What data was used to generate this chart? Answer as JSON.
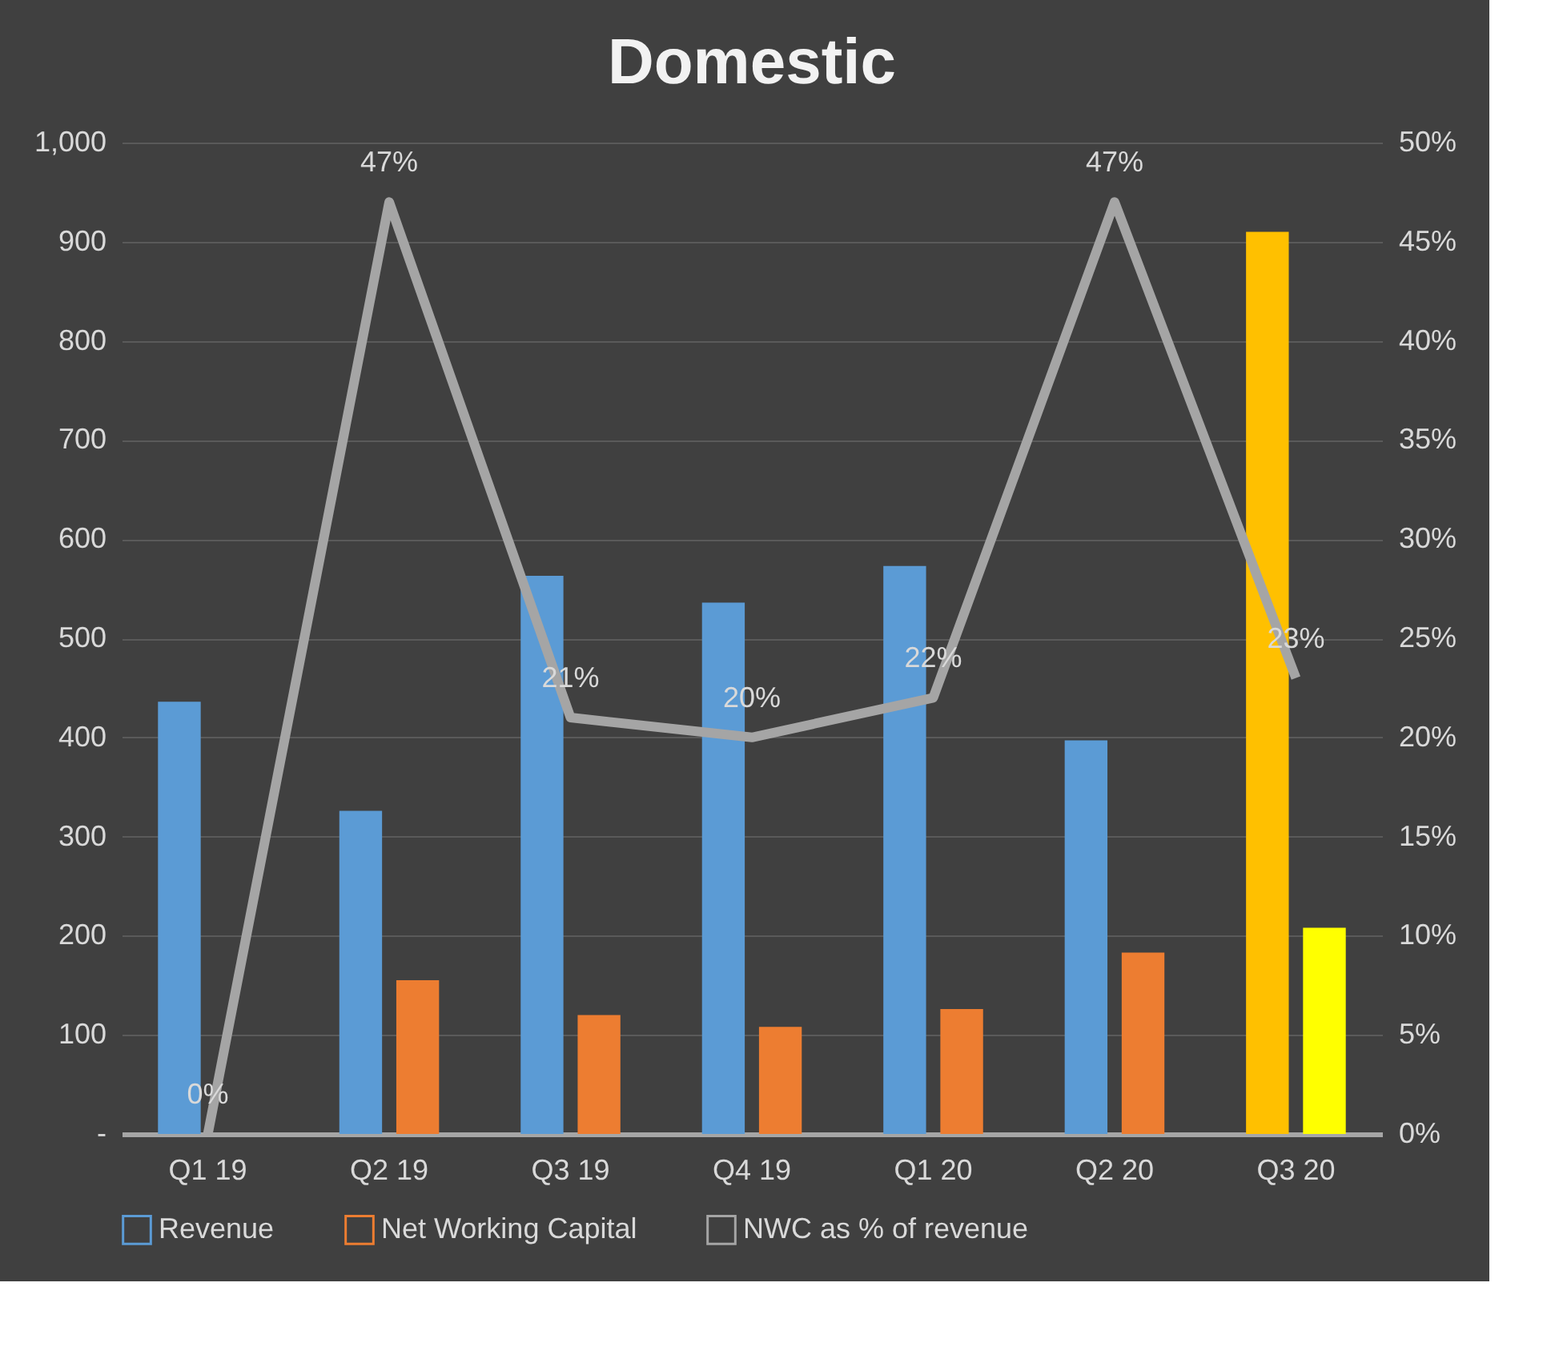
{
  "chart_data": {
    "type": "bar",
    "title": "Domestic",
    "categories": [
      "Q1 19",
      "Q2 19",
      "Q3 19",
      "Q4 19",
      "Q1 20",
      "Q2 20",
      "Q3 20"
    ],
    "series": [
      {
        "name": "Revenue",
        "color": "#5b9bd5",
        "colors": [
          "#5b9bd5",
          "#5b9bd5",
          "#5b9bd5",
          "#5b9bd5",
          "#5b9bd5",
          "#5b9bd5",
          "#ffc000"
        ],
        "values": [
          436,
          326,
          563,
          536,
          573,
          397,
          910
        ]
      },
      {
        "name": "Net Working Capital",
        "color": "#ed7d31",
        "colors": [
          "#ed7d31",
          "#ed7d31",
          "#ed7d31",
          "#ed7d31",
          "#ed7d31",
          "#ed7d31",
          "#ffff00"
        ],
        "values": [
          0,
          155,
          120,
          108,
          126,
          183,
          208
        ]
      },
      {
        "name": "NWC as % of revenue",
        "type": "line",
        "axis": "y2",
        "color": "#a5a5a5",
        "values": [
          0,
          47,
          21,
          20,
          22,
          47,
          23
        ],
        "value_labels": [
          "0%",
          "47%",
          "21%",
          "20%",
          "22%",
          "47%",
          "23%"
        ]
      }
    ],
    "ylim": [
      0,
      1000
    ],
    "yticks": [
      {
        "value": 0,
        "label": "-"
      },
      100,
      200,
      300,
      400,
      500,
      600,
      700,
      800,
      900,
      {
        "value": 1000,
        "label": "1,000"
      }
    ],
    "y2lim": [
      0,
      50
    ],
    "y2ticks": [
      {
        "value": 0,
        "label": "0%"
      },
      {
        "value": 5,
        "label": "5%"
      },
      {
        "value": 10,
        "label": "10%"
      },
      {
        "value": 15,
        "label": "15%"
      },
      {
        "value": 20,
        "label": "20%"
      },
      {
        "value": 25,
        "label": "25%"
      },
      {
        "value": 30,
        "label": "30%"
      },
      {
        "value": 35,
        "label": "35%"
      },
      {
        "value": 40,
        "label": "40%"
      },
      {
        "value": 45,
        "label": "45%"
      },
      {
        "value": 50,
        "label": "50%"
      }
    ],
    "grid": "y",
    "legend": "bottom"
  }
}
